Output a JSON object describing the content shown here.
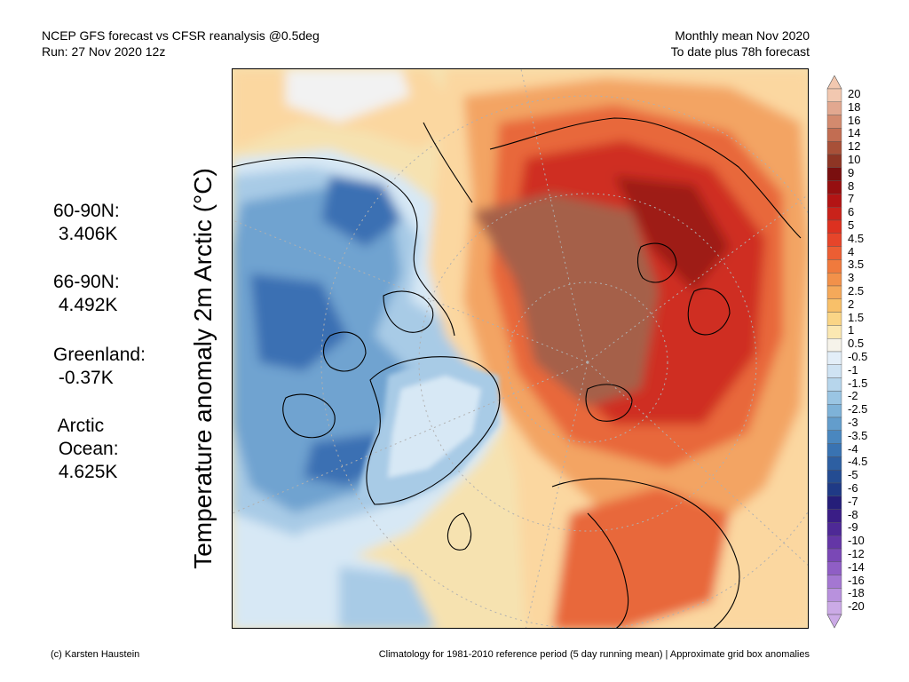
{
  "header": {
    "left_line1": "NCEP GFS forecast vs CFSR reanalysis @0.5deg",
    "left_line2": "Run: 27 Nov 2020 12z",
    "right_line1": "Monthly mean Nov 2020",
    "right_line2": "To date plus 78h forecast"
  },
  "stats": {
    "s1_label": "60-90N:",
    "s1_value": " 3.406K",
    "s2_label": "66-90N:",
    "s2_value": " 4.492K",
    "s3_label": "Greenland:",
    "s3_value": " -0.37K",
    "s4_label": " Arctic",
    "s4_label2": " Ocean:",
    "s4_value": " 4.625K"
  },
  "axis_label": "Temperature anomaly 2m Arctic (°C)",
  "colorbar": {
    "labels": [
      "20",
      "18",
      "16",
      "14",
      "12",
      "10",
      "9",
      "8",
      "7",
      "6",
      "5",
      "4.5",
      "4",
      "3.5",
      "3",
      "2.5",
      "2",
      "1.5",
      "1",
      "0.5",
      "-0.5",
      "-1",
      "-1.5",
      "-2",
      "-2.5",
      "-3",
      "-3.5",
      "-4",
      "-4.5",
      "-5",
      "-6",
      "-7",
      "-8",
      "-9",
      "-10",
      "-12",
      "-14",
      "-16",
      "-18",
      "-20"
    ],
    "colors": [
      "#f2c8b0",
      "#e2a890",
      "#d38a6e",
      "#c26d52",
      "#a85038",
      "#8e3524",
      "#7a0f0f",
      "#960f10",
      "#b31414",
      "#c9221a",
      "#dd3120",
      "#e6452a",
      "#ec5e33",
      "#f07a3d",
      "#f2914a",
      "#f5a95a",
      "#f8c069",
      "#fad586",
      "#fbe8b2",
      "#f6f3ea",
      "#e3eef8",
      "#cfe3f3",
      "#b7d6ec",
      "#9ac5e3",
      "#7eb2d8",
      "#639dcc",
      "#4a87bf",
      "#3973b2",
      "#2d5fa2",
      "#244c92",
      "#1f3a86",
      "#251e79",
      "#3a1d86",
      "#4e2996",
      "#6436a6",
      "#7a48b6",
      "#8f5ec5",
      "#a477d2",
      "#b891dd",
      "#cbaae6"
    ]
  },
  "map_colors": {
    "background": "#f6e2b0",
    "ocean_neutral": "#f2f2f2",
    "pale_blue": "#d7e8f5",
    "light_blue": "#a8cbe6",
    "mid_blue": "#6fa3d0",
    "deep_blue": "#3b6fb3",
    "pale_orange": "#fbd7a0",
    "orange": "#f3a463",
    "red_orange": "#e8673a",
    "red": "#cf2f22",
    "dark_red": "#9e1a16",
    "brown": "#a5604a",
    "grid": "#b0b0b0",
    "coast": "#000000"
  },
  "footer": {
    "left": "(c) Karsten Haustein",
    "right": "Climatology for 1981-2010 reference period (5 day running mean) | Approximate grid box anomalies"
  }
}
